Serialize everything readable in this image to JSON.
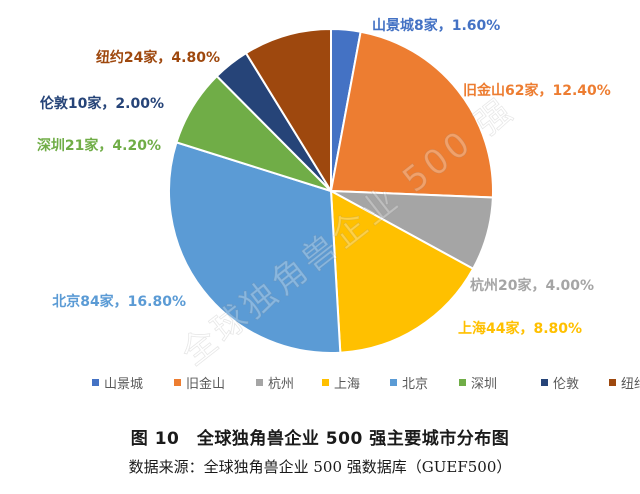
{
  "chart_data": {
    "type": "pie",
    "title": "",
    "start_angle_deg": 90,
    "direction": "clockwise",
    "slices": [
      {
        "name": "山景城",
        "label": "山景城8家，1.60%",
        "count": 8,
        "value": 1.6,
        "color": "#4472C4"
      },
      {
        "name": "旧金山",
        "label": "旧金山62家，12.40%",
        "count": 62,
        "value": 12.4,
        "color": "#ED7D31"
      },
      {
        "name": "杭州",
        "label": "杭州20家，4.00%",
        "count": 20,
        "value": 4.0,
        "color": "#A5A5A5"
      },
      {
        "name": "上海",
        "label": "上海44家，8.80%",
        "count": 44,
        "value": 8.8,
        "color": "#FFC000"
      },
      {
        "name": "北京",
        "label": "北京84家，16.80%",
        "count": 84,
        "value": 16.8,
        "color": "#5B9BD5"
      },
      {
        "name": "深圳",
        "label": "深圳21家，4.20%",
        "count": 21,
        "value": 4.2,
        "color": "#70AD47"
      },
      {
        "name": "伦敦",
        "label": "伦敦10家，2.00%",
        "count": 10,
        "value": 2.0,
        "color": "#264478"
      },
      {
        "name": "纽约",
        "label": "纽约24家，4.80%",
        "count": 24,
        "value": 4.8,
        "color": "#9E480E"
      }
    ],
    "legend": {
      "placement": "bottom"
    }
  },
  "watermark": "全球独角兽企业 500 强",
  "caption": {
    "title": "图 10　全球独角兽企业 500 强主要城市分布图",
    "source": "数据来源：全球独角兽企业 500 强数据库（GUEF500）"
  }
}
